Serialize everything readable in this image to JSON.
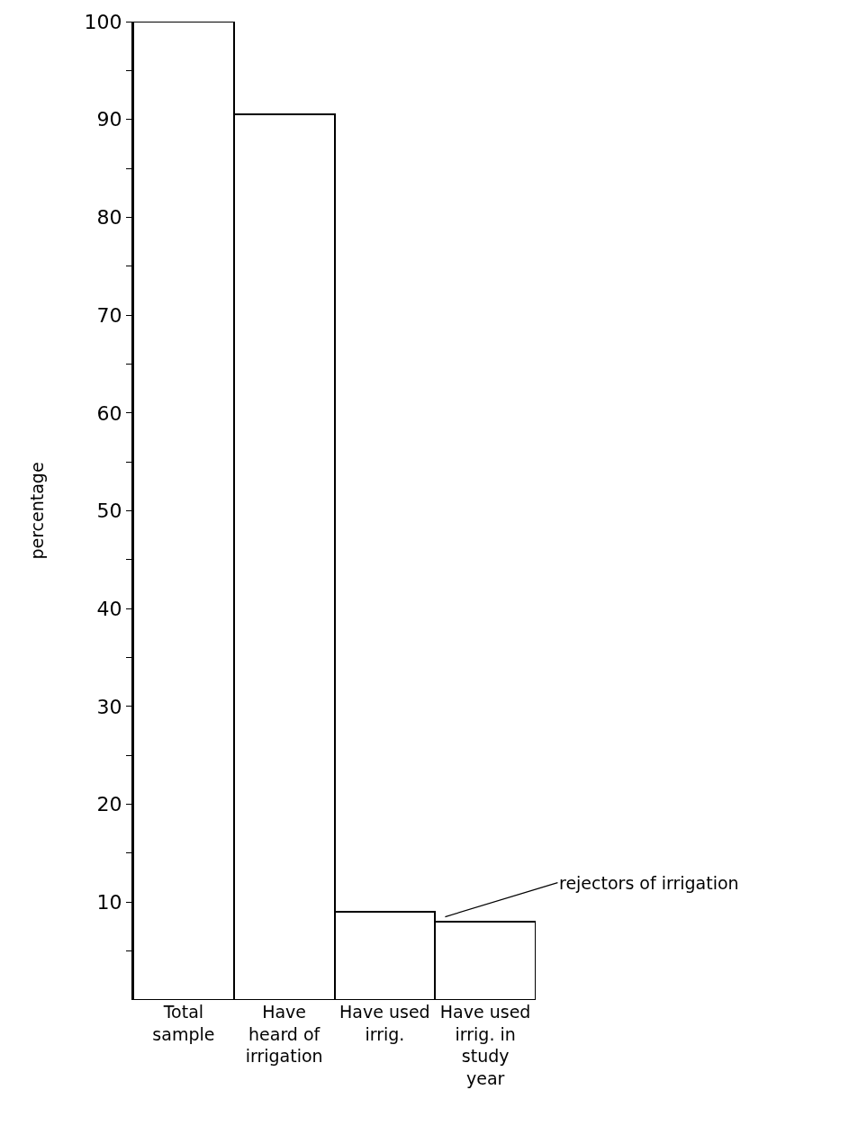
{
  "chart_data": {
    "type": "bar",
    "ylabel": "percentage",
    "categories": [
      "Total sample",
      "Have heard of irrigation",
      "Have used irrig.",
      "Have used irrig. in study year"
    ],
    "values": [
      100,
      90.5,
      9,
      8
    ],
    "color": "#000000",
    "ylim": [
      0,
      100
    ],
    "yticks": [
      {
        "value": 5,
        "label": null
      },
      10,
      {
        "value": 15,
        "label": null
      },
      20,
      {
        "value": 25,
        "label": null
      },
      30,
      {
        "value": 35,
        "label": null
      },
      40,
      {
        "value": 45,
        "label": null
      },
      50,
      {
        "value": 55,
        "label": null
      },
      60,
      {
        "value": 65,
        "label": null
      },
      70,
      {
        "value": 75,
        "label": null
      },
      80,
      {
        "value": 85,
        "label": null
      },
      90,
      {
        "value": 95,
        "label": null
      },
      100
    ],
    "annotations": [
      "rejectors of irrigation"
    ],
    "grid": false
  }
}
